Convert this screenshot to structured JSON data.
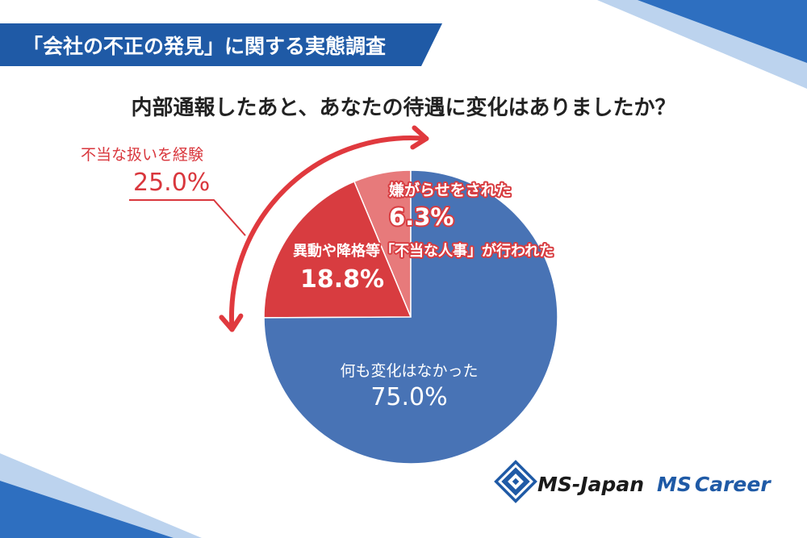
{
  "banner": {
    "title": "「会社の不正の発見」に関する実態調査"
  },
  "question": "内部通報したあと、あなたの待遇に変化はありましたか？",
  "group_label": {
    "name": "不当な扱いを経験",
    "value": "25.0%"
  },
  "logos": {
    "ms_japan": "MS-Japan",
    "ms_career_ms": "MS",
    "ms_career_rest": "Career"
  },
  "colors": {
    "blue": "#4873b5",
    "red": "#d83c40",
    "pink": "#e77a7b",
    "arrow_red": "#e0393e",
    "banner_blue": "#1f5aa6",
    "callout_red": "#d9373d"
  },
  "chart_data": {
    "type": "pie",
    "title": "内部通報したあと、あなたの待遇に変化はありましたか？",
    "slices": [
      {
        "label": "嫌がらせをされた",
        "value": 6.3,
        "display": "6.3%",
        "color": "#e77a7b"
      },
      {
        "label": "異動や降格等「不当な人事」が行われた",
        "value": 18.8,
        "display": "18.8%",
        "color": "#d83c40"
      },
      {
        "label": "何も変化はなかった",
        "value": 75.0,
        "display": "75.0%",
        "color": "#4873b5"
      }
    ]
  }
}
